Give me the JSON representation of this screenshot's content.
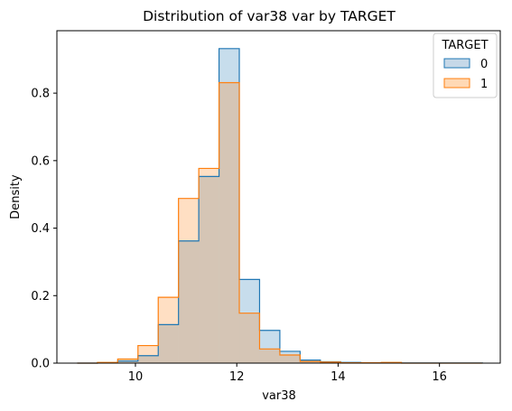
{
  "chart_data": {
    "type": "histogram",
    "title": "Distribution of var38 var by TARGET",
    "xlabel": "var38",
    "ylabel": "Density",
    "xlim": [
      8.45,
      17.2
    ],
    "ylim": [
      0,
      0.985
    ],
    "xticks": [
      10,
      12,
      14,
      16
    ],
    "yticks": [
      0.0,
      0.2,
      0.4,
      0.6,
      0.8
    ],
    "grid": false,
    "legend": {
      "title": "TARGET",
      "placement": "top-right"
    },
    "bin_edges": [
      8.85,
      9.25,
      9.65,
      10.05,
      10.45,
      10.85,
      11.25,
      11.65,
      12.05,
      12.45,
      12.85,
      13.25,
      13.65,
      14.05,
      14.45,
      14.85,
      15.25,
      15.65,
      16.05,
      16.45,
      16.85
    ],
    "series": [
      {
        "name": "0",
        "color": "#1f77b4",
        "fill": "#c6d8e8",
        "values": [
          0.0,
          0.001,
          0.006,
          0.022,
          0.114,
          0.362,
          0.553,
          0.932,
          0.248,
          0.097,
          0.035,
          0.009,
          0.004,
          0.002,
          0.001,
          0.001,
          0.0005,
          0.0005,
          0.0003,
          0.0003
        ]
      },
      {
        "name": "1",
        "color": "#ff7f0e",
        "fill": "#ffd9b5",
        "values": [
          0.0,
          0.002,
          0.012,
          0.052,
          0.195,
          0.488,
          0.577,
          0.831,
          0.148,
          0.042,
          0.024,
          0.005,
          0.003,
          0.001,
          0.001,
          0.002,
          0.0,
          0.0,
          0.0,
          0.0
        ]
      }
    ]
  }
}
